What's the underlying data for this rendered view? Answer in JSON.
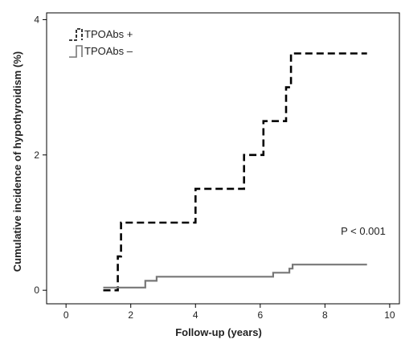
{
  "chart_data": {
    "type": "line",
    "title": "",
    "xlabel": "Follow-up (years)",
    "ylabel": "Cumulative incidence of hypothyroidism (%)",
    "xlim": [
      -0.6,
      10.3
    ],
    "ylim": [
      -0.2,
      4.1
    ],
    "x_ticks": [
      0,
      2,
      4,
      6,
      8,
      10
    ],
    "y_ticks": [
      0,
      2,
      4
    ],
    "grid": false,
    "legend_position": "top-left",
    "annotation": "P < 0.001",
    "series": [
      {
        "name": "TPOAbs +",
        "color": "#000000",
        "dash": "dashed",
        "step": true,
        "points": [
          [
            1.15,
            0
          ],
          [
            1.6,
            0
          ],
          [
            1.6,
            0.5
          ],
          [
            1.7,
            0.5
          ],
          [
            1.7,
            1.0
          ],
          [
            4.0,
            1.0
          ],
          [
            4.0,
            1.5
          ],
          [
            5.5,
            1.5
          ],
          [
            5.5,
            2.0
          ],
          [
            6.1,
            2.0
          ],
          [
            6.1,
            2.5
          ],
          [
            6.8,
            2.5
          ],
          [
            6.8,
            3.0
          ],
          [
            6.95,
            3.0
          ],
          [
            6.95,
            3.5
          ],
          [
            9.3,
            3.5
          ]
        ]
      },
      {
        "name": "TPOAbs –",
        "color": "#777777",
        "dash": "solid",
        "step": true,
        "points": [
          [
            1.15,
            0.04
          ],
          [
            2.45,
            0.04
          ],
          [
            2.45,
            0.14
          ],
          [
            2.8,
            0.14
          ],
          [
            2.8,
            0.2
          ],
          [
            6.4,
            0.2
          ],
          [
            6.4,
            0.26
          ],
          [
            6.9,
            0.26
          ],
          [
            6.9,
            0.32
          ],
          [
            7.0,
            0.32
          ],
          [
            7.0,
            0.38
          ],
          [
            9.3,
            0.38
          ]
        ]
      }
    ]
  }
}
